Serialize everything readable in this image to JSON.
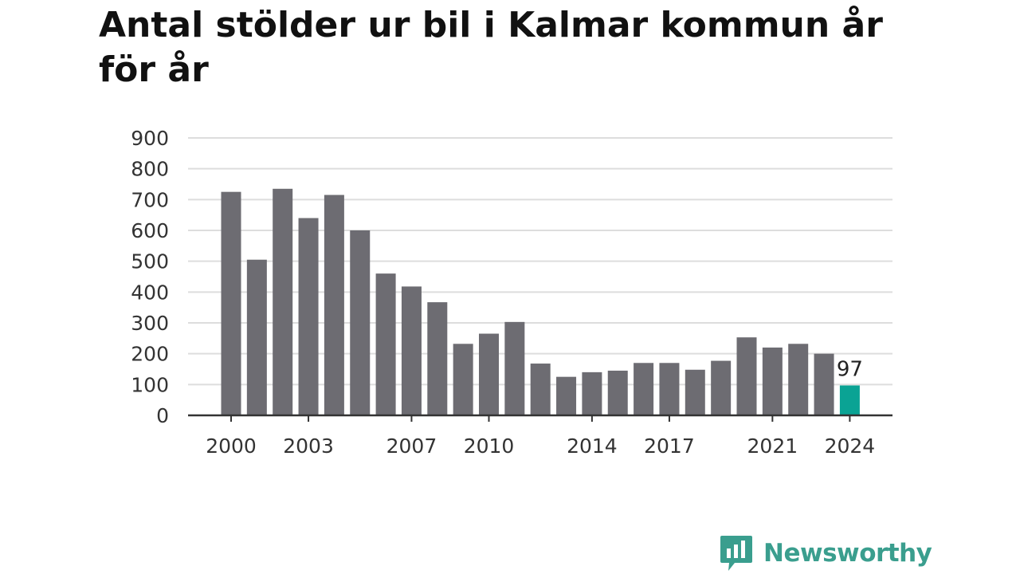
{
  "title": "Antal stölder ur bil i Kalmar kommun år för år",
  "brand": {
    "name": "Newsworthy",
    "color": "#3a9e8e",
    "icon": "newsworthy-chart-bubble-icon"
  },
  "colors": {
    "bar": "#6d6c72",
    "highlight": "#0aa394",
    "grid": "#dddddd",
    "axis": "#333333"
  },
  "chart_data": {
    "type": "bar",
    "title": "Antal stölder ur bil i Kalmar kommun år för år",
    "xlabel": "",
    "ylabel": "",
    "ylim": [
      0,
      900
    ],
    "yticks": [
      0,
      100,
      200,
      300,
      400,
      500,
      600,
      700,
      800,
      900
    ],
    "xtick_labels": [
      "2000",
      "2003",
      "2007",
      "2010",
      "2014",
      "2017",
      "2021",
      "2024"
    ],
    "grid": true,
    "categories": [
      "2000",
      "2001",
      "2002",
      "2003",
      "2004",
      "2005",
      "2006",
      "2007",
      "2008",
      "2009",
      "2010",
      "2011",
      "2012",
      "2013",
      "2014",
      "2015",
      "2016",
      "2017",
      "2018",
      "2019",
      "2020",
      "2021",
      "2022",
      "2023",
      "2024"
    ],
    "values": [
      725,
      505,
      735,
      640,
      715,
      600,
      460,
      418,
      367,
      232,
      265,
      303,
      168,
      125,
      140,
      145,
      170,
      170,
      148,
      177,
      253,
      220,
      232,
      200,
      97
    ],
    "highlight": {
      "category": "2024",
      "label": "97"
    }
  }
}
